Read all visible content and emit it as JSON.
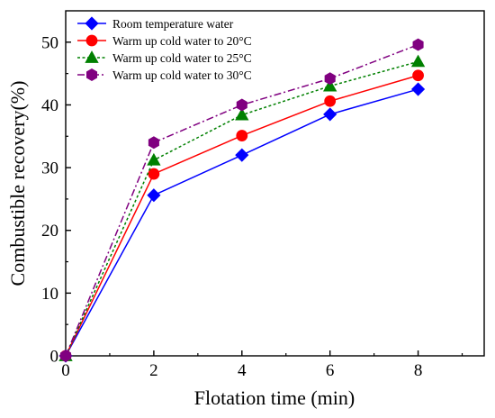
{
  "chart_data": {
    "type": "line",
    "xlabel": "Flotation time (min)",
    "ylabel": "Combustible recovery(%)",
    "xlim": [
      0,
      9.5
    ],
    "ylim": [
      0,
      55
    ],
    "xticks": [
      0,
      2,
      4,
      6,
      8
    ],
    "yticks": [
      0,
      10,
      20,
      30,
      40,
      50
    ],
    "legend_position": "top-left",
    "grid": false,
    "x": [
      0,
      2,
      4,
      6,
      8
    ],
    "series": [
      {
        "name": "Room temperature water",
        "values": [
          0,
          25.6,
          32.0,
          38.5,
          42.5
        ],
        "color": "#0000ff",
        "marker": "diamond",
        "line_style": "solid"
      },
      {
        "name": "Warm up cold water to 20°C",
        "values": [
          0,
          29.0,
          35.1,
          40.6,
          44.7
        ],
        "color": "#ff0000",
        "marker": "circle",
        "line_style": "solid"
      },
      {
        "name": "Warm up cold water to 25°C",
        "values": [
          0,
          31.2,
          38.4,
          43.0,
          46.9
        ],
        "color": "#008000",
        "marker": "triangle",
        "line_style": "dotted"
      },
      {
        "name": "Warm up cold water to 30°C",
        "values": [
          0,
          34.0,
          40.0,
          44.2,
          49.6
        ],
        "color": "#800080",
        "marker": "hexagon",
        "line_style": "dash-dot"
      }
    ]
  }
}
